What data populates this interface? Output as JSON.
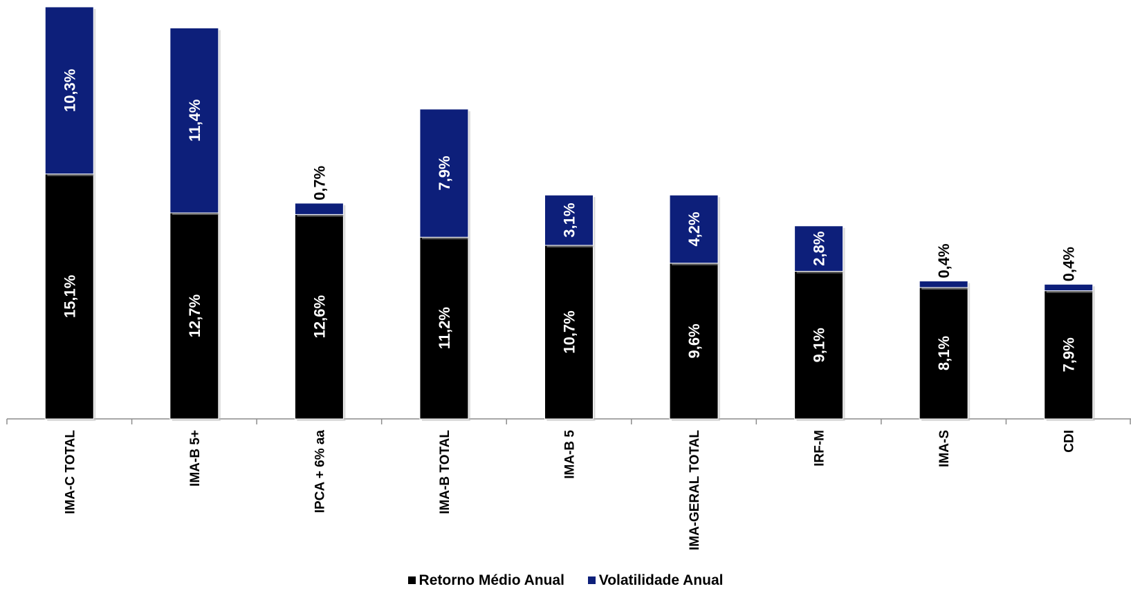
{
  "chart_data": {
    "type": "bar",
    "stacked": true,
    "categories": [
      "IMA-C TOTAL",
      "IMA-B 5+",
      "IPCA + 6% aa",
      "IMA-B TOTAL",
      "IMA-B 5",
      "IMA-GERAL TOTAL",
      "IRF-M",
      "IMA-S",
      "CDI"
    ],
    "series": [
      {
        "name": "Retorno Médio Anual",
        "color": "#000000",
        "values": [
          15.1,
          12.7,
          12.6,
          11.2,
          10.7,
          9.6,
          9.1,
          8.1,
          7.9
        ],
        "labels": [
          "15,1%",
          "12,7%",
          "12,6%",
          "11,2%",
          "10,7%",
          "9,6%",
          "9,1%",
          "8,1%",
          "7,9%"
        ]
      },
      {
        "name": "Volatilidade Anual",
        "color": "#0d1f7a",
        "values": [
          10.3,
          11.4,
          0.7,
          7.9,
          3.1,
          4.2,
          2.8,
          0.4,
          0.4
        ],
        "labels": [
          "10,3%",
          "11,4%",
          "0,7%",
          "7,9%",
          "3,1%",
          "4,2%",
          "2,8%",
          "0,4%",
          "0,4%"
        ]
      }
    ],
    "grid": false,
    "legend_position": "bottom",
    "data_labels": "rotated-vertical"
  }
}
